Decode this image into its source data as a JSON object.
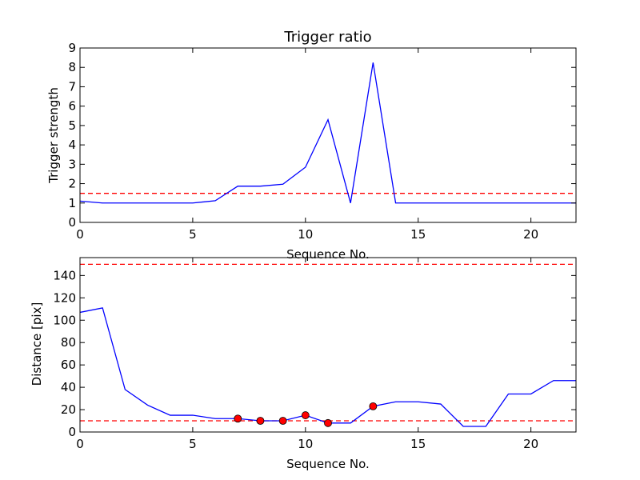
{
  "chart_data": [
    {
      "type": "line",
      "title": "Trigger ratio",
      "xlabel": "Sequence No.",
      "ylabel": "Trigger strength",
      "xlim": [
        0,
        22
      ],
      "ylim": [
        0,
        9
      ],
      "xticks": [
        0,
        5,
        10,
        15,
        20
      ],
      "yticks": [
        0,
        1,
        2,
        3,
        4,
        5,
        6,
        7,
        8,
        9
      ],
      "grid": false,
      "series": [
        {
          "color": "#0000ff",
          "x": [
            0,
            1,
            2,
            3,
            4,
            5,
            6,
            7,
            8,
            9,
            10,
            11,
            12,
            13,
            14,
            15,
            16,
            17,
            18,
            19,
            20,
            21,
            22
          ],
          "values": [
            1.1,
            1.0,
            1.0,
            1.0,
            1.0,
            1.0,
            1.12,
            1.87,
            1.87,
            1.97,
            2.85,
            5.3,
            1.0,
            8.25,
            1.0,
            1.0,
            1.0,
            1.0,
            1.0,
            1.0,
            1.0,
            1.0,
            1.0
          ]
        }
      ],
      "hlines": [
        {
          "y": 1.5,
          "color": "#ff0000",
          "style": "dashed"
        }
      ]
    },
    {
      "type": "line",
      "title": "",
      "xlabel": "Sequence No.",
      "ylabel": "Distance [pix]",
      "xlim": [
        0,
        22
      ],
      "ylim": [
        0,
        156
      ],
      "xticks": [
        0,
        5,
        10,
        15,
        20
      ],
      "yticks": [
        0,
        20,
        40,
        60,
        80,
        100,
        120,
        140
      ],
      "grid": false,
      "series": [
        {
          "color": "#0000ff",
          "x": [
            0,
            1,
            2,
            3,
            4,
            5,
            6,
            7,
            8,
            9,
            10,
            11,
            12,
            13,
            14,
            15,
            16,
            17,
            18,
            19,
            20,
            21,
            22
          ],
          "values": [
            107,
            111,
            38,
            24,
            15,
            15,
            12,
            12,
            10,
            10,
            15,
            8,
            8,
            23,
            27,
            27,
            25,
            5,
            5,
            34,
            34,
            46,
            46
          ]
        }
      ],
      "markers": {
        "color": "#ff0000",
        "x": [
          7,
          8,
          9,
          10,
          11,
          13
        ],
        "values": [
          12,
          10,
          10,
          15,
          8,
          23
        ]
      },
      "hlines": [
        {
          "y": 150,
          "color": "#ff0000",
          "style": "dashed"
        },
        {
          "y": 10,
          "color": "#ff0000",
          "style": "dashed"
        }
      ]
    }
  ]
}
